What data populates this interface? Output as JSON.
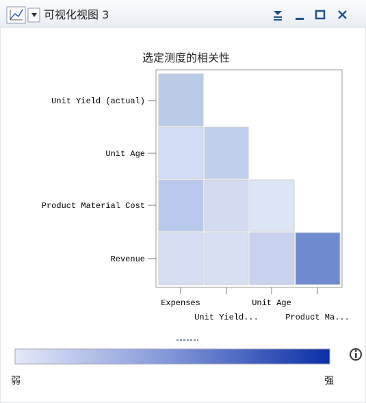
{
  "window": {
    "title": "可视化视图 3"
  },
  "chart": {
    "title": "选定测度的相关性",
    "y_labels": [
      "Unit Yield (actual)",
      "Unit Age",
      "Product Material Cost",
      "Revenue"
    ],
    "x_labels": [
      "Expenses",
      "Unit Yield...",
      "Unit Age",
      "Product Ma..."
    ],
    "legend": {
      "low": "弱",
      "high": "强"
    }
  }
}
